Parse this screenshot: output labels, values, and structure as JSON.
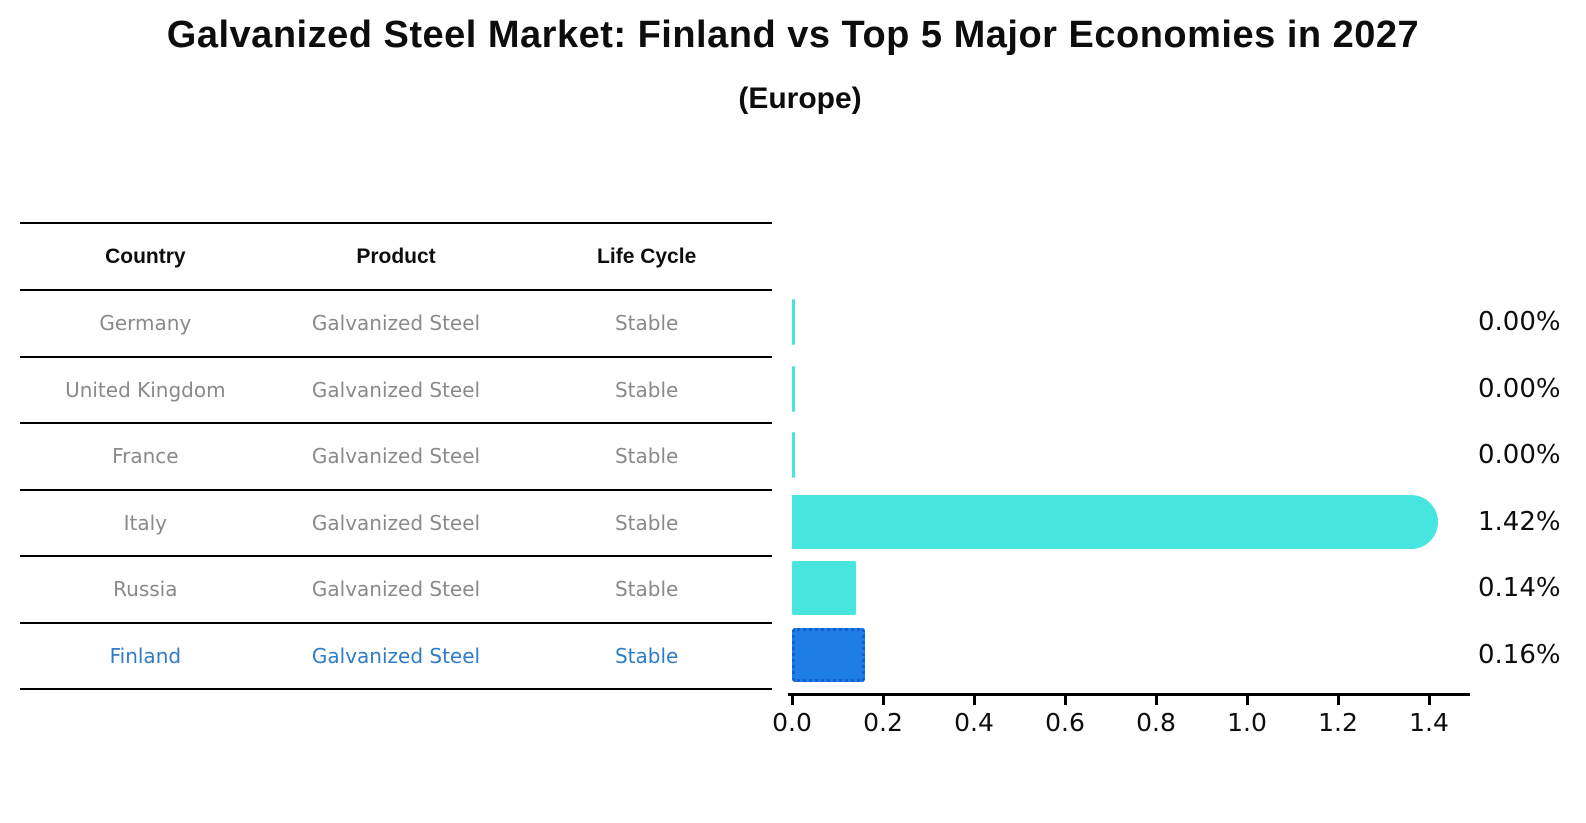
{
  "title": "Galvanized Steel Market: Finland vs Top 5 Major Economies in 2027",
  "subtitle": "(Europe)",
  "table": {
    "headers": [
      "Country",
      "Product",
      "Life Cycle"
    ],
    "rows": [
      {
        "country": "Germany",
        "product": "Galvanized Steel",
        "life_cycle": "Stable",
        "highlight": false
      },
      {
        "country": "United Kingdom",
        "product": "Galvanized Steel",
        "life_cycle": "Stable",
        "highlight": false
      },
      {
        "country": "France",
        "product": "Galvanized Steel",
        "life_cycle": "Stable",
        "highlight": false
      },
      {
        "country": "Italy",
        "product": "Galvanized Steel",
        "life_cycle": "Stable",
        "highlight": false
      },
      {
        "country": "Russia",
        "product": "Galvanized Steel",
        "life_cycle": "Stable",
        "highlight": false
      },
      {
        "country": "Finland",
        "product": "Galvanized Steel",
        "life_cycle": "Stable",
        "highlight": true
      }
    ]
  },
  "chart_data": {
    "type": "bar",
    "orientation": "horizontal",
    "title": "Galvanized Steel Market: Finland vs Top 5 Major Economies in 2027",
    "subtitle": "(Europe)",
    "categories": [
      "Germany",
      "United Kingdom",
      "France",
      "Italy",
      "Russia",
      "Finland"
    ],
    "values": [
      0.0,
      0.0,
      0.0,
      1.42,
      0.14,
      0.16
    ],
    "value_labels": [
      "0.00%",
      "0.00%",
      "0.00%",
      "1.42%",
      "0.14%",
      "0.16%"
    ],
    "unit": "%",
    "x_ticks": [
      "0.0",
      "0.2",
      "0.4",
      "0.6",
      "0.8",
      "1.0",
      "1.2",
      "1.4"
    ],
    "xlim": [
      0,
      1.49
    ],
    "grid": false,
    "legend": "none",
    "highlight_index": 5
  },
  "colors": {
    "bar": "#46E5E0",
    "highlight_bar": "#1E7EE8",
    "highlight_bar_border": "#1560CF",
    "highlight_text": "#2F7CC9",
    "row_text": "#8A8A8A",
    "header_text": "#0D0D0D",
    "axis": "#000000",
    "background": "#FFFFFF"
  }
}
